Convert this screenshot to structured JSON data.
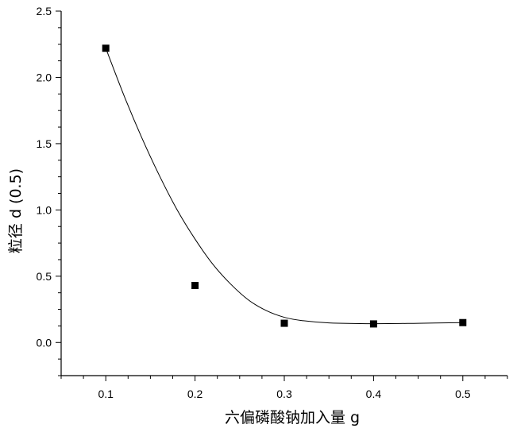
{
  "chart_data": {
    "type": "scatter",
    "title": "",
    "xlabel": "六偏磷酸钠加入量 g",
    "ylabel": "粒径 d (0.5)",
    "xlim": [
      0.05,
      0.55
    ],
    "ylim": [
      -0.25,
      2.5
    ],
    "x_ticks": [
      0.1,
      0.2,
      0.3,
      0.4,
      0.5
    ],
    "x_tick_labels": [
      "0.1",
      "0.2",
      "0.3",
      "0.4",
      "0.5"
    ],
    "y_ticks": [
      0.0,
      0.5,
      1.0,
      1.5,
      2.0,
      2.5
    ],
    "y_tick_labels": [
      "0.0",
      "0.5",
      "1.0",
      "1.5",
      "2.0",
      "2.5"
    ],
    "grid": false,
    "marker": "square",
    "marker_color": "#000000",
    "line_color": "#000000",
    "series": [
      {
        "points": [
          {
            "x": 0.1,
            "y": 2.22
          },
          {
            "x": 0.2,
            "y": 0.43
          },
          {
            "x": 0.3,
            "y": 0.145
          },
          {
            "x": 0.4,
            "y": 0.14
          },
          {
            "x": 0.5,
            "y": 0.15
          }
        ]
      }
    ],
    "fit_curve": [
      {
        "x": 0.1,
        "y": 2.22
      },
      {
        "x": 0.12,
        "y": 1.87
      },
      {
        "x": 0.14,
        "y": 1.55
      },
      {
        "x": 0.16,
        "y": 1.26
      },
      {
        "x": 0.18,
        "y": 1.0
      },
      {
        "x": 0.2,
        "y": 0.78
      },
      {
        "x": 0.22,
        "y": 0.59
      },
      {
        "x": 0.24,
        "y": 0.44
      },
      {
        "x": 0.26,
        "y": 0.32
      },
      {
        "x": 0.28,
        "y": 0.24
      },
      {
        "x": 0.3,
        "y": 0.19
      },
      {
        "x": 0.32,
        "y": 0.165
      },
      {
        "x": 0.35,
        "y": 0.148
      },
      {
        "x": 0.4,
        "y": 0.142
      },
      {
        "x": 0.45,
        "y": 0.145
      },
      {
        "x": 0.5,
        "y": 0.15
      }
    ]
  }
}
